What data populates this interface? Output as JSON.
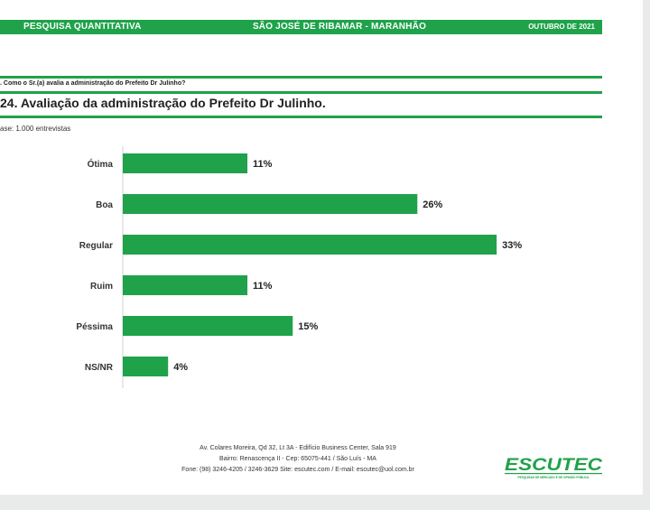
{
  "header": {
    "left": "PESQUISA QUANTITATIVA",
    "center": "SÃO JOSÉ DE RIBAMAR - MARANHÃO",
    "right": "OUTUBRO DE 2021"
  },
  "question": ". Como o Sr.(a) avalia a administração do Prefeito Dr Julinho?",
  "title": "24. Avaliação da administração do Prefeito Dr Julinho.",
  "base": "ase: 1.000 entrevistas",
  "chart_data": {
    "type": "bar",
    "orientation": "horizontal",
    "categories": [
      "Ótima",
      "Boa",
      "Regular",
      "Ruim",
      "Péssima",
      "NS/NR"
    ],
    "values": [
      11,
      26,
      33,
      11,
      15,
      4
    ],
    "value_labels": [
      "11%",
      "26%",
      "33%",
      "11%",
      "15%",
      "4%"
    ],
    "unit": "%",
    "xlim": [
      0,
      35
    ],
    "grid": false,
    "bar_color": "#1fa24a"
  },
  "footer": {
    "line1": "Av. Colares Moreira, Qd 32, Lt 3A - Edifício Business Center, Sala 919",
    "line2": "Bairro: Renascença II - Cep: 65075-441 / São Luís - MA",
    "line3": "Fone: (98) 3246-4205 / 3246-3629 Site: escutec.com / E-mail: escutec@uol.com.br"
  },
  "logo": {
    "name": "ESCUTEC",
    "tagline": "PESQUISAS DE MERCADO E DE OPINIÃO PÚBLICA",
    "color": "#1fa24a"
  }
}
